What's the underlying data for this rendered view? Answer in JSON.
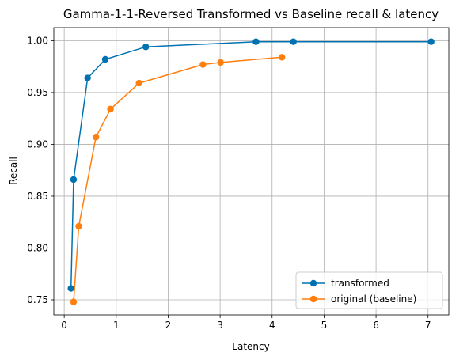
{
  "chart_data": {
    "type": "line",
    "title": "Gamma-1-1-Reversed Transformed vs Baseline recall & latency",
    "xlabel": "Latency",
    "ylabel": "Recall",
    "xlim": [
      -0.2,
      7.4
    ],
    "ylim": [
      0.7355,
      1.0125
    ],
    "xticks": [
      0,
      1,
      2,
      3,
      4,
      5,
      6,
      7
    ],
    "yticks": [
      0.75,
      0.8,
      0.85,
      0.9,
      0.95,
      1.0
    ],
    "xtick_labels": [
      "0",
      "1",
      "2",
      "3",
      "4",
      "5",
      "6",
      "7"
    ],
    "ytick_labels": [
      "0.75",
      "0.80",
      "0.85",
      "0.90",
      "0.95",
      "1.00"
    ],
    "grid": true,
    "legend_position": "lower-right",
    "series": [
      {
        "name": "transformed",
        "color": "#0072B2",
        "marker": "circle",
        "x": [
          0.13,
          0.18,
          0.45,
          0.79,
          1.57,
          3.69,
          4.41,
          7.06
        ],
        "y": [
          0.761,
          0.866,
          0.964,
          0.982,
          0.994,
          0.999,
          0.999,
          0.999
        ]
      },
      {
        "name": "original (baseline)",
        "color": "#FF7F0E",
        "marker": "circle",
        "x": [
          0.18,
          0.28,
          0.61,
          0.89,
          1.44,
          2.67,
          3.01,
          4.19
        ],
        "y": [
          0.748,
          0.821,
          0.907,
          0.934,
          0.959,
          0.977,
          0.979,
          0.984
        ]
      }
    ]
  }
}
